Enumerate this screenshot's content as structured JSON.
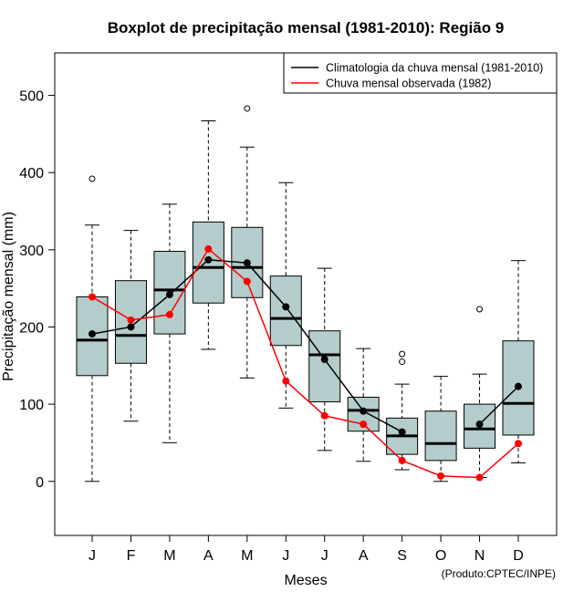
{
  "chart_data": {
    "type": "boxplot",
    "title": "Boxplot de precipitação mensal (1981-2010): Região 9",
    "xlabel": "Meses",
    "ylabel": "Precipitação mensal (mm)",
    "ylim": [
      -70,
      555
    ],
    "yticks": [
      0,
      100,
      200,
      300,
      400,
      500
    ],
    "grid": false,
    "legend_position": "top-right",
    "credit": "(Produto:CPTEC/INPE)",
    "categories": [
      "J",
      "F",
      "M",
      "A",
      "M",
      "J",
      "J",
      "A",
      "S",
      "O",
      "N",
      "D"
    ],
    "box_color": "#b4cccc",
    "boxes": [
      {
        "whisker_low": 0,
        "q1": 137,
        "median": 183,
        "q3": 239,
        "whisker_high": 332,
        "outliers": [
          392
        ]
      },
      {
        "whisker_low": 78,
        "q1": 153,
        "median": 189,
        "q3": 260,
        "whisker_high": 325,
        "outliers": []
      },
      {
        "whisker_low": 50,
        "q1": 191,
        "median": 248,
        "q3": 298,
        "whisker_high": 359,
        "outliers": []
      },
      {
        "whisker_low": 171,
        "q1": 231,
        "median": 277,
        "q3": 336,
        "whisker_high": 467,
        "outliers": []
      },
      {
        "whisker_low": 134,
        "q1": 238,
        "median": 277,
        "q3": 329,
        "whisker_high": 433,
        "outliers": [
          483
        ]
      },
      {
        "whisker_low": 95,
        "q1": 176,
        "median": 211,
        "q3": 266,
        "whisker_high": 387,
        "outliers": []
      },
      {
        "whisker_low": 40,
        "q1": 103,
        "median": 164,
        "q3": 195,
        "whisker_high": 276,
        "outliers": []
      },
      {
        "whisker_low": 26,
        "q1": 65,
        "median": 92,
        "q3": 109,
        "whisker_high": 172,
        "outliers": []
      },
      {
        "whisker_low": 15,
        "q1": 35,
        "median": 59,
        "q3": 82,
        "whisker_high": 126,
        "outliers": [
          155,
          165
        ]
      },
      {
        "whisker_low": 0,
        "q1": 27,
        "median": 49,
        "q3": 91,
        "whisker_high": 136,
        "outliers": []
      },
      {
        "whisker_low": 5,
        "q1": 43,
        "median": 68,
        "q3": 100,
        "whisker_high": 139,
        "outliers": [
          223
        ]
      },
      {
        "whisker_low": 24,
        "q1": 60,
        "median": 101,
        "q3": 182,
        "whisker_high": 286,
        "outliers": []
      }
    ],
    "series": [
      {
        "name": "Climatologia da chuva mensal (1981-2010)",
        "color": "#000000",
        "values": [
          191,
          200,
          242,
          287,
          283,
          226,
          158,
          91,
          64,
          0,
          74,
          123
        ],
        "present": [
          true,
          true,
          true,
          true,
          true,
          true,
          true,
          true,
          true,
          false,
          true,
          true
        ]
      },
      {
        "name": "Chuva mensal observada (1982)",
        "color": "#ff0000",
        "values": [
          239,
          209,
          216,
          301,
          259,
          130,
          85,
          74,
          27,
          7,
          5,
          49
        ],
        "present": [
          true,
          true,
          true,
          true,
          true,
          true,
          true,
          true,
          true,
          true,
          true,
          true
        ]
      }
    ]
  }
}
